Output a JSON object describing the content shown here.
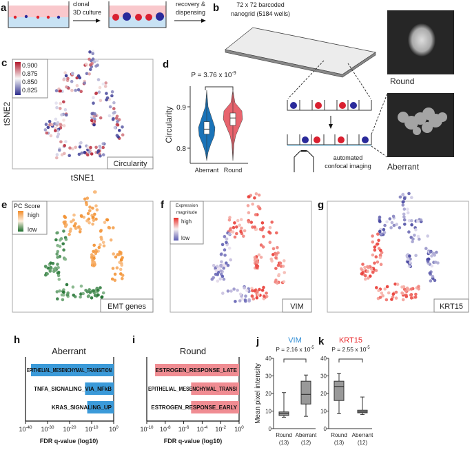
{
  "panel_labels": {
    "a": "a",
    "b": "b",
    "c": "c",
    "d": "d",
    "e": "e",
    "f": "f",
    "g": "g",
    "h": "h",
    "i": "i",
    "j": "j",
    "k": "k"
  },
  "panel_a": {
    "step1_line1": "clonal",
    "step1_line2": "3D culture",
    "step2_line1": "recovery &",
    "step2_line2": "dispensing"
  },
  "panel_b": {
    "title_line1": "72 x 72 barcoded",
    "title_line2": "nanogrid (5184 wells)",
    "imaging_line1": "automated",
    "imaging_line2": "confocal imaging",
    "round_label": "Round",
    "aberrant_label": "Aberrant"
  },
  "panel_c": {
    "xlabel": "tSNE1",
    "ylabel": "tSNE2",
    "tag": "Circularity",
    "legend": [
      "0.900",
      "0.875",
      "0.850",
      "0.825"
    ],
    "colors": {
      "high": "#b2182b",
      "mid": "#f7f7f7",
      "low": "#2c2c8c"
    }
  },
  "panel_e": {
    "legend_title": "PC Score",
    "legend_high": "high",
    "legend_low": "low",
    "tag": "EMT genes",
    "colors": {
      "high": "#f28c28",
      "low": "#1b6e2c"
    }
  },
  "panel_f": {
    "legend_title_line1": "Expression",
    "legend_title_line2": "magnitude",
    "legend_high": "high",
    "legend_low": "low",
    "tag": "VIM",
    "colors": {
      "high": "#e8302a",
      "low": "#5a5ab0"
    }
  },
  "panel_g": {
    "tag": "KRT15"
  },
  "chart_data": [
    {
      "id": "d",
      "type": "violin",
      "ylabel": "Circularity",
      "yticks": [
        "0.8",
        "0.9"
      ],
      "ylim": [
        0.77,
        0.96
      ],
      "pvalue_text": "P = 3.76 x 10",
      "pvalue_exp": "-9",
      "categories": [
        "Aberrant",
        "Round"
      ],
      "colors": [
        "#1a73b8",
        "#e8646e"
      ],
      "boxes": [
        {
          "q1": 0.834,
          "median": 0.846,
          "q3": 0.864
        },
        {
          "q1": 0.855,
          "median": 0.873,
          "q3": 0.885
        }
      ]
    },
    {
      "id": "h",
      "type": "bar",
      "orientation": "horizontal",
      "title": "Aberrant",
      "xlabel": "FDR q-value (log10)",
      "xscale": "log",
      "xlim_exp": [
        -40,
        0
      ],
      "xticks": [
        {
          "base": "10",
          "exp": "-40"
        },
        {
          "base": "10",
          "exp": "-30"
        },
        {
          "base": "10",
          "exp": "-20"
        },
        {
          "base": "10",
          "exp": "-10"
        },
        {
          "base": "10",
          "exp": "0"
        }
      ],
      "color": "#3b9ad9",
      "bars": [
        {
          "label": "EPITHELIAL_MESENCHYMAL_TRANSITION",
          "log10_q": -37.5
        },
        {
          "label": "TNFA_SIGNALING_VIA_NFkB",
          "log10_q": -13
        },
        {
          "label": "KRAS_SIGNALING_UP",
          "log10_q": -12
        }
      ]
    },
    {
      "id": "i",
      "type": "bar",
      "orientation": "horizontal",
      "title": "Round",
      "xlabel": "FDR q-value (log10)",
      "xscale": "log",
      "xlim_exp": [
        -10,
        0
      ],
      "xticks": [
        {
          "base": "10",
          "exp": "-10"
        },
        {
          "base": "10",
          "exp": "-8"
        },
        {
          "base": "10",
          "exp": "-6"
        },
        {
          "base": "10",
          "exp": "-4"
        },
        {
          "base": "10",
          "exp": "-2"
        },
        {
          "base": "10",
          "exp": "0"
        }
      ],
      "color": "#f08c92",
      "bars": [
        {
          "label": "ESTROGEN_RESPONSE_LATE",
          "log10_q": -9.1
        },
        {
          "label": "EPITHELIAL_MESENCHYMAL_TRANSI",
          "log10_q": -5.2
        },
        {
          "label": "ESTROGEN_RESPONSE_EARLY",
          "log10_q": -5.2
        }
      ]
    },
    {
      "id": "j",
      "type": "box",
      "title": "VIM",
      "title_color": "#2a8ad4",
      "ylabel": "Mean pixel intensity",
      "ylim": [
        0,
        40
      ],
      "yticks": [
        "0",
        "10",
        "20",
        "30",
        "40"
      ],
      "pvalue_text": "P = 2.16 x 10",
      "pvalue_exp": "-5",
      "categories": [
        {
          "name": "Round",
          "n": "(13)"
        },
        {
          "name": "Aberrant",
          "n": "(12)"
        }
      ],
      "boxes": [
        {
          "min": 6.5,
          "q1": 7.5,
          "median": 8.5,
          "q3": 9.5,
          "max": 20.5
        },
        {
          "min": 7,
          "q1": 14,
          "median": 19.5,
          "q3": 27,
          "max": 30.5
        }
      ]
    },
    {
      "id": "k",
      "type": "box",
      "title": "KRT15",
      "title_color": "#e8262a",
      "ylim": [
        0,
        40
      ],
      "yticks": [
        "0",
        "10",
        "20",
        "30",
        "40"
      ],
      "pvalue_text": "P = 2.55 x 10",
      "pvalue_exp": "-5",
      "categories": [
        {
          "name": "Round",
          "n": "(13)"
        },
        {
          "name": "Aberrant",
          "n": "(12)"
        }
      ],
      "boxes": [
        {
          "min": 8.5,
          "q1": 16,
          "median": 24,
          "q3": 27,
          "max": 31.5
        },
        {
          "min": 8,
          "q1": 9,
          "median": 9.5,
          "q3": 10.5,
          "max": 18
        }
      ]
    }
  ]
}
